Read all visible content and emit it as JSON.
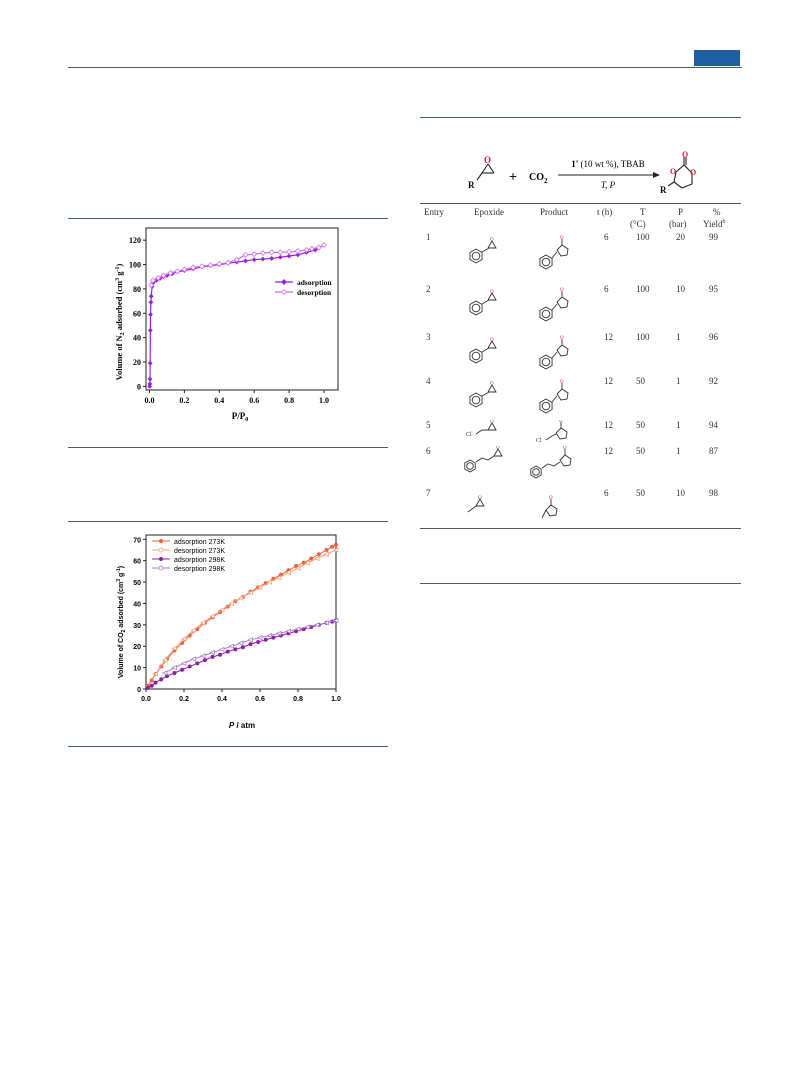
{
  "reaction": {
    "reactant_label": "R",
    "epoxide_o": "O",
    "plus": "+",
    "co2": "CO",
    "co2_sub": "2",
    "catalyst_bold": "1'",
    "catalyst_rest": "(10 wt %), TBAB",
    "conditions": "T, P",
    "product_r": "R",
    "product_o": "O"
  },
  "table": {
    "headers": {
      "entry": "Entry",
      "epoxide": "Epoxide",
      "product": "Product",
      "t": "t (h)",
      "T1": "T",
      "T2": "(°C)",
      "P1": "P",
      "P2": "(bar)",
      "Y1": "%",
      "Y2": "Yield",
      "Y2sup": "b"
    },
    "rows": [
      {
        "entry": "1",
        "t": "6",
        "T": "100",
        "P": "20",
        "yield": "99"
      },
      {
        "entry": "2",
        "t": "6",
        "T": "100",
        "P": "10",
        "yield": "95"
      },
      {
        "entry": "3",
        "t": "12",
        "T": "100",
        "P": "1",
        "yield": "96"
      },
      {
        "entry": "4",
        "t": "12",
        "T": "50",
        "P": "1",
        "yield": "92"
      },
      {
        "entry": "5",
        "t": "12",
        "T": "50",
        "P": "1",
        "yield": "94"
      },
      {
        "entry": "6",
        "t": "12",
        "T": "50",
        "P": "1",
        "yield": "87"
      },
      {
        "entry": "7",
        "t": "6",
        "T": "50",
        "P": "10",
        "yield": "98"
      }
    ],
    "cl_label": "Cl"
  },
  "chart_data": [
    {
      "type": "line",
      "xlabel": "P/P",
      "xlabel_sub": "0",
      "ylabel": "Volume of N",
      "ylabel_sub": "2",
      "ylabel_rest": " adsorbed (cm",
      "ylabel_sup": "3",
      "ylabel_rest2": " g",
      "ylabel_sup2": "-1",
      "ylabel_end": ")",
      "xlim": [
        -0.02,
        1.08
      ],
      "ylim": [
        -3,
        130
      ],
      "xticks": [
        "0.0",
        "0.2",
        "0.4",
        "0.6",
        "0.8",
        "1.0"
      ],
      "yticks": [
        "0",
        "20",
        "40",
        "60",
        "80",
        "100",
        "120"
      ],
      "series": [
        {
          "name": "adsorption",
          "color": "#9a1ee0",
          "x": [
            0.001,
            0.002,
            0.003,
            0.004,
            0.005,
            0.006,
            0.008,
            0.01,
            0.015,
            0.02,
            0.04,
            0.06,
            0.08,
            0.1,
            0.13,
            0.16,
            0.2,
            0.25,
            0.3,
            0.35,
            0.4,
            0.45,
            0.5,
            0.55,
            0.6,
            0.65,
            0.7,
            0.75,
            0.8,
            0.85,
            0.9,
            0.95,
            1.0
          ],
          "y": [
            0,
            2,
            6,
            19,
            46,
            59,
            69,
            74,
            82,
            85,
            87,
            88.5,
            90,
            91,
            92.5,
            94,
            95,
            96.5,
            98,
            99,
            100,
            101,
            102,
            103,
            104,
            104.5,
            105,
            106,
            107,
            108,
            110,
            112,
            116
          ]
        },
        {
          "name": "desorption",
          "color": "#d36cf2",
          "x": [
            1.0,
            0.97,
            0.93,
            0.9,
            0.85,
            0.8,
            0.75,
            0.7,
            0.65,
            0.6,
            0.55,
            0.5,
            0.45,
            0.4,
            0.35,
            0.3,
            0.25,
            0.2,
            0.16,
            0.12,
            0.08,
            0.05,
            0.02,
            0.01
          ],
          "y": [
            116,
            114,
            113,
            112,
            111,
            110.5,
            110,
            110,
            109.5,
            108.5,
            108,
            104,
            101.5,
            100.5,
            99.5,
            98.5,
            97.5,
            96,
            94.5,
            93,
            91,
            89,
            87,
            83
          ]
        }
      ],
      "legend": "right"
    },
    {
      "type": "line",
      "xlabel_italic": "P",
      "xlabel_rest": " / atm",
      "ylabel": "Volume of CO",
      "ylabel_sub": "2",
      "ylabel_rest": " adsorbed (cm",
      "ylabel_sup": "3",
      "ylabel_rest2": " g",
      "ylabel_sup2": "-1",
      "ylabel_end": ")",
      "xlim": [
        0,
        1.0
      ],
      "ylim": [
        0,
        72
      ],
      "xticks": [
        "0.0",
        "0.2",
        "0.4",
        "0.6",
        "0.8",
        "1.0"
      ],
      "yticks": [
        "0",
        "10",
        "20",
        "30",
        "40",
        "50",
        "60",
        "70"
      ],
      "series": [
        {
          "name": "adsorption 273K",
          "color": "#f0603a",
          "marker": "filled",
          "x": [
            0.01,
            0.03,
            0.05,
            0.08,
            0.11,
            0.15,
            0.19,
            0.23,
            0.27,
            0.31,
            0.35,
            0.39,
            0.43,
            0.47,
            0.51,
            0.55,
            0.59,
            0.63,
            0.67,
            0.71,
            0.75,
            0.79,
            0.83,
            0.87,
            0.91,
            0.95,
            0.98,
            1.0
          ],
          "y": [
            1.5,
            4,
            7,
            10.5,
            14,
            18,
            21.5,
            25,
            28,
            31,
            33.5,
            36,
            38.5,
            41,
            43,
            45.5,
            47.5,
            49.5,
            51.5,
            53.5,
            55.5,
            57.5,
            59,
            61,
            63,
            65,
            66.5,
            67.5
          ]
        },
        {
          "name": "desorption 273K",
          "color": "#f4a07a",
          "marker": "open",
          "x": [
            1.0,
            0.95,
            0.9,
            0.85,
            0.8,
            0.75,
            0.7,
            0.65,
            0.6,
            0.55,
            0.5,
            0.45,
            0.4,
            0.35,
            0.3,
            0.25,
            0.2,
            0.15,
            0.1,
            0.05
          ],
          "y": [
            65,
            63,
            61,
            59,
            56.5,
            54.5,
            52,
            50,
            47.5,
            45,
            42.5,
            40,
            37,
            34,
            31,
            27.5,
            23.5,
            19,
            13.5,
            7
          ]
        },
        {
          "name": "adsorption 298K",
          "color": "#8a1fa8",
          "marker": "filled",
          "x": [
            0.01,
            0.03,
            0.05,
            0.08,
            0.11,
            0.15,
            0.19,
            0.23,
            0.27,
            0.31,
            0.35,
            0.39,
            0.43,
            0.47,
            0.51,
            0.55,
            0.59,
            0.63,
            0.67,
            0.71,
            0.75,
            0.79,
            0.83,
            0.87,
            0.91,
            0.95,
            0.98,
            1.0
          ],
          "y": [
            0.5,
            1.5,
            3,
            4.5,
            6,
            7.5,
            9,
            10.5,
            12,
            13.5,
            15,
            16,
            17.5,
            18.5,
            19.5,
            21,
            22,
            23,
            24,
            25,
            26,
            27,
            28,
            29,
            30,
            31,
            31.5,
            32
          ]
        },
        {
          "name": "desorption 298K",
          "color": "#b07ad0",
          "marker": "open",
          "x": [
            1.0,
            0.95,
            0.9,
            0.85,
            0.8,
            0.75,
            0.7,
            0.65,
            0.6,
            0.55,
            0.5,
            0.45,
            0.4,
            0.35,
            0.3,
            0.25,
            0.2,
            0.15,
            0.1
          ],
          "y": [
            32,
            31,
            30,
            29,
            28,
            27,
            26,
            25,
            24,
            23,
            21.5,
            20,
            18.5,
            17,
            15.5,
            14,
            12,
            10,
            7.5
          ]
        }
      ],
      "legend": "top-left"
    }
  ]
}
